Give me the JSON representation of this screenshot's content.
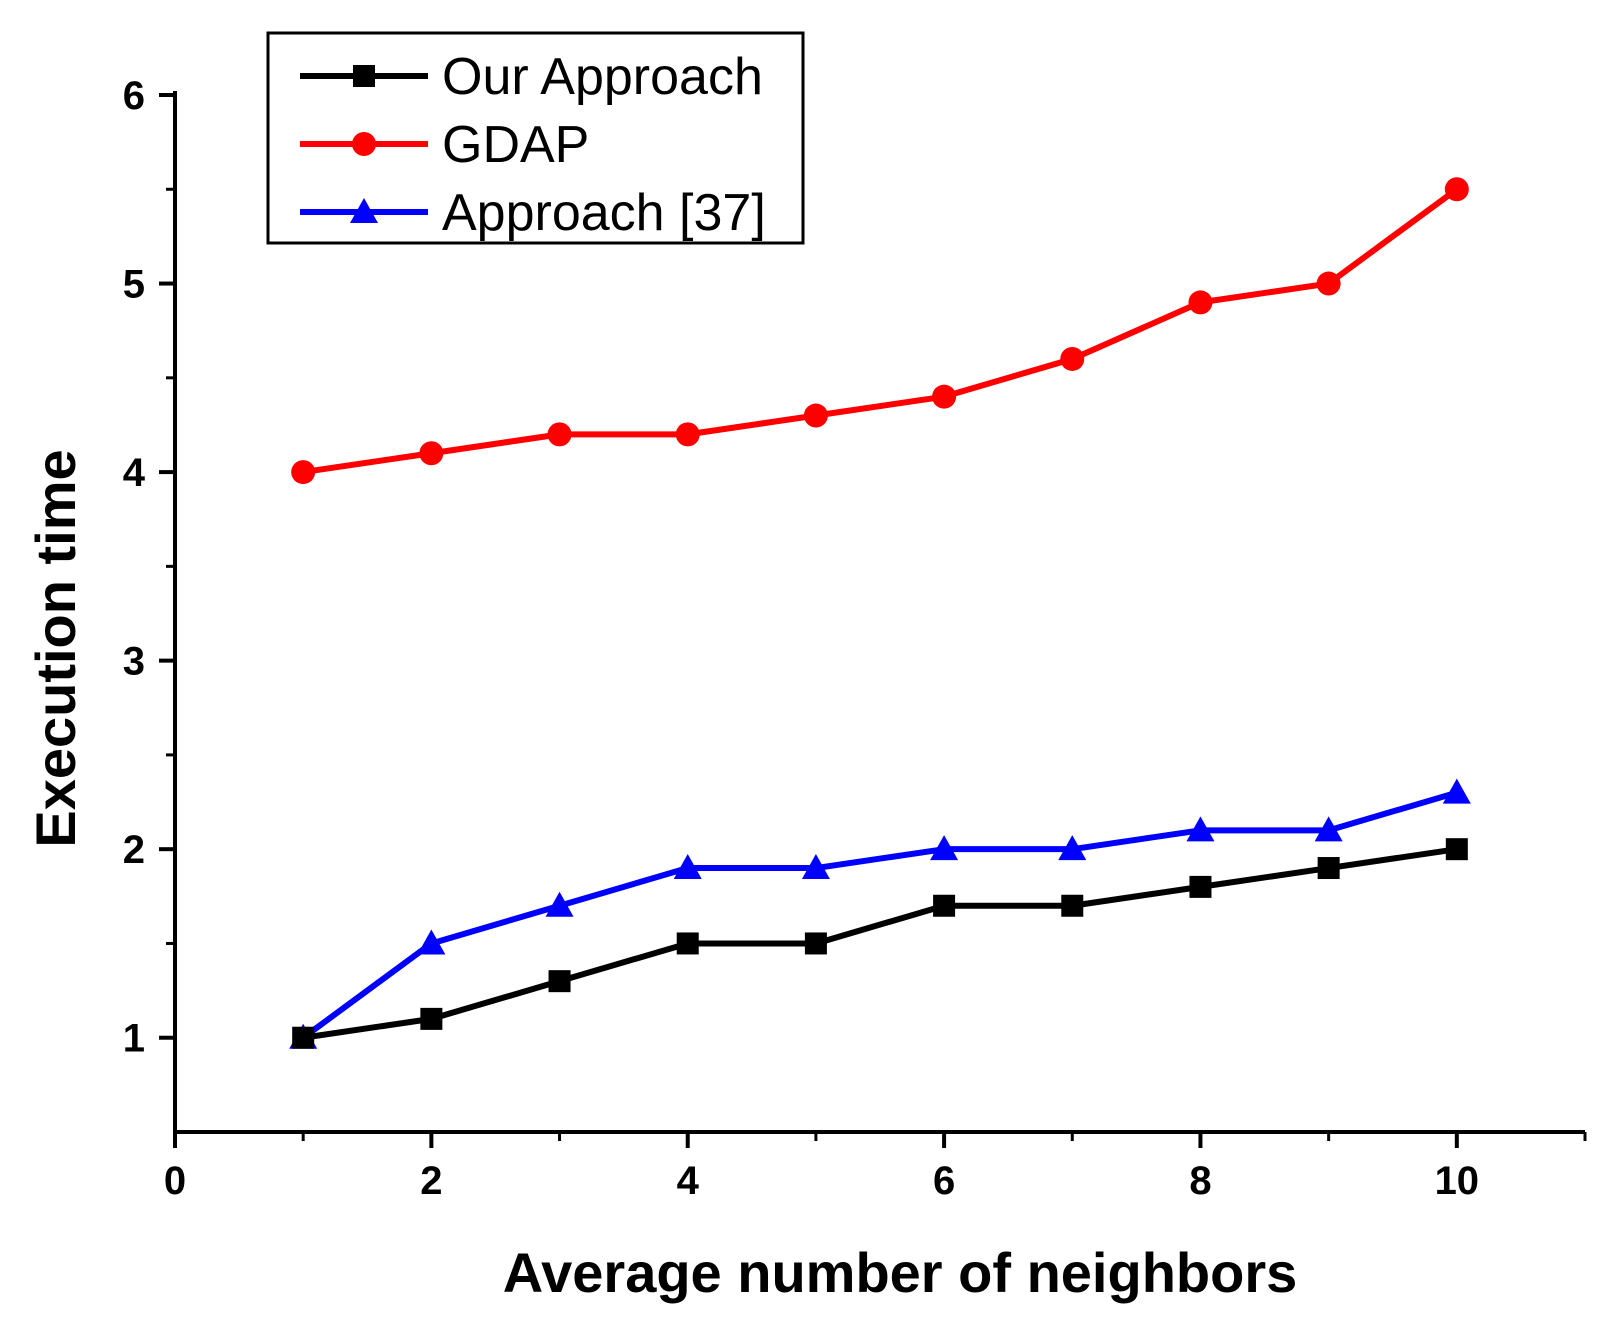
{
  "chart_data": {
    "type": "line",
    "title": "",
    "xlabel": "Average number of neighbors",
    "ylabel": "Execution time",
    "xlim": [
      0,
      11
    ],
    "ylim": [
      0.5,
      6
    ],
    "xticks": [
      0,
      2,
      4,
      6,
      8,
      10
    ],
    "xtick_labels": [
      "0",
      "2",
      "4",
      "6",
      "8",
      "10"
    ],
    "yticks": [
      1,
      2,
      3,
      4,
      5,
      6
    ],
    "ytick_labels": [
      "1",
      "2",
      "3",
      "4",
      "5",
      "6"
    ],
    "legend_position": "top-left",
    "x": [
      1,
      2,
      3,
      4,
      5,
      6,
      7,
      8,
      9,
      10
    ],
    "series": [
      {
        "name": "Our Approach",
        "marker": "square",
        "color": "#000000",
        "values": [
          1.0,
          1.1,
          1.3,
          1.5,
          1.5,
          1.7,
          1.7,
          1.8,
          1.9,
          2.0
        ]
      },
      {
        "name": "GDAP",
        "marker": "circle",
        "color": "#ff0000",
        "values": [
          4.0,
          4.1,
          4.2,
          4.2,
          4.3,
          4.4,
          4.6,
          4.9,
          5.0,
          5.5
        ]
      },
      {
        "name": "Approach [37]",
        "marker": "triangle",
        "color": "#0000ff",
        "values": [
          1.0,
          1.5,
          1.7,
          1.9,
          1.9,
          2.0,
          2.0,
          2.1,
          2.1,
          2.3
        ]
      }
    ]
  }
}
